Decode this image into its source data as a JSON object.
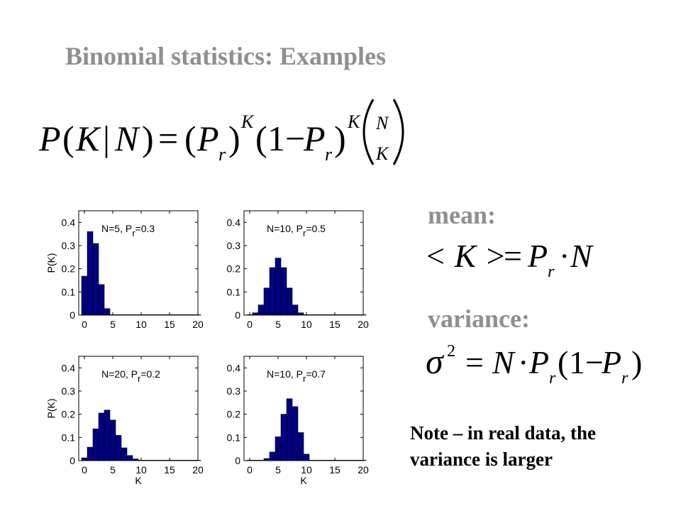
{
  "slide": {
    "title": "Binomial statistics: Examples",
    "mean_label": "mean:",
    "variance_label": "variance:",
    "note_line1": "Note – in real data, the",
    "note_line2": "variance is larger"
  },
  "formulas": {
    "pmf": {
      "P": "P",
      "open": "(",
      "K": "K",
      "bar": "|",
      "N": "N",
      "close": ")",
      "eq": "=",
      "Pr_P": "P",
      "Pr_r": "r",
      "exp_K": "K",
      "one_minus": "1−",
      "binom_top": "N",
      "binom_bottom": "K"
    },
    "mean": {
      "lhs": "< K >",
      "eq": "=",
      "P": "P",
      "r": "r",
      "dot": "·",
      "N": "N"
    },
    "variance": {
      "sigma": "σ",
      "exp": "2",
      "eq": "=",
      "N": "N",
      "dot": "·",
      "P": "P",
      "r": "r",
      "one_minus": "1−"
    }
  },
  "chart_data": [
    {
      "type": "bar",
      "annotation_main": "N=5, P",
      "annotation_sub": "r",
      "annotation_tail": "=0.3",
      "ylabel": "P(K)",
      "xlabel": "",
      "xlim": [
        -1,
        20
      ],
      "ylim": [
        0,
        0.45
      ],
      "xticks": [
        "0",
        "5",
        "10",
        "15",
        "20"
      ],
      "yticks": [
        "0",
        "0.1",
        "0.2",
        "0.3",
        "0.4"
      ],
      "x": [
        0,
        1,
        2,
        3,
        4,
        5,
        6,
        7,
        8,
        9,
        10,
        11,
        12,
        13,
        14,
        15,
        16,
        17,
        18,
        19,
        20
      ],
      "values": [
        0.168,
        0.36,
        0.309,
        0.132,
        0.028,
        0.002,
        0,
        0,
        0,
        0,
        0,
        0,
        0,
        0,
        0,
        0,
        0,
        0,
        0,
        0,
        0
      ],
      "bar_color": "#000080"
    },
    {
      "type": "bar",
      "annotation_main": "N=10, P",
      "annotation_sub": "r",
      "annotation_tail": "=0.5",
      "ylabel": "",
      "xlabel": "",
      "xlim": [
        -1,
        20
      ],
      "ylim": [
        0,
        0.45
      ],
      "xticks": [
        "0",
        "5",
        "10",
        "15",
        "20"
      ],
      "yticks": [
        "0",
        "0.1",
        "0.2",
        "0.3",
        "0.4"
      ],
      "x": [
        0,
        1,
        2,
        3,
        4,
        5,
        6,
        7,
        8,
        9,
        10,
        11,
        12,
        13,
        14,
        15,
        16,
        17,
        18,
        19,
        20
      ],
      "values": [
        0.001,
        0.01,
        0.044,
        0.117,
        0.205,
        0.246,
        0.205,
        0.117,
        0.044,
        0.01,
        0.001,
        0,
        0,
        0,
        0,
        0,
        0,
        0,
        0,
        0,
        0
      ],
      "bar_color": "#000080"
    },
    {
      "type": "bar",
      "annotation_main": "N=20, P",
      "annotation_sub": "r",
      "annotation_tail": "=0.2",
      "ylabel": "P(K)",
      "xlabel": "K",
      "xlim": [
        -1,
        20
      ],
      "ylim": [
        0,
        0.45
      ],
      "xticks": [
        "0",
        "5",
        "10",
        "15",
        "20"
      ],
      "yticks": [
        "0",
        "0.1",
        "0.2",
        "0.3",
        "0.4"
      ],
      "x": [
        0,
        1,
        2,
        3,
        4,
        5,
        6,
        7,
        8,
        9,
        10,
        11,
        12,
        13,
        14,
        15,
        16,
        17,
        18,
        19,
        20
      ],
      "values": [
        0.012,
        0.058,
        0.137,
        0.205,
        0.218,
        0.175,
        0.109,
        0.055,
        0.022,
        0.007,
        0.002,
        0,
        0,
        0,
        0,
        0,
        0,
        0,
        0,
        0,
        0
      ],
      "bar_color": "#000080"
    },
    {
      "type": "bar",
      "annotation_main": "N=10, P",
      "annotation_sub": "r",
      "annotation_tail": "=0.7",
      "ylabel": "",
      "xlabel": "K",
      "xlim": [
        -1,
        20
      ],
      "ylim": [
        0,
        0.45
      ],
      "xticks": [
        "0",
        "5",
        "10",
        "15",
        "20"
      ],
      "yticks": [
        "0",
        "0.1",
        "0.2",
        "0.3",
        "0.4"
      ],
      "x": [
        0,
        1,
        2,
        3,
        4,
        5,
        6,
        7,
        8,
        9,
        10,
        11,
        12,
        13,
        14,
        15,
        16,
        17,
        18,
        19,
        20
      ],
      "values": [
        0,
        0.0001,
        0.001,
        0.009,
        0.037,
        0.103,
        0.2,
        0.267,
        0.233,
        0.121,
        0.028,
        0,
        0,
        0,
        0,
        0,
        0,
        0,
        0,
        0,
        0
      ],
      "bar_color": "#000080"
    }
  ]
}
